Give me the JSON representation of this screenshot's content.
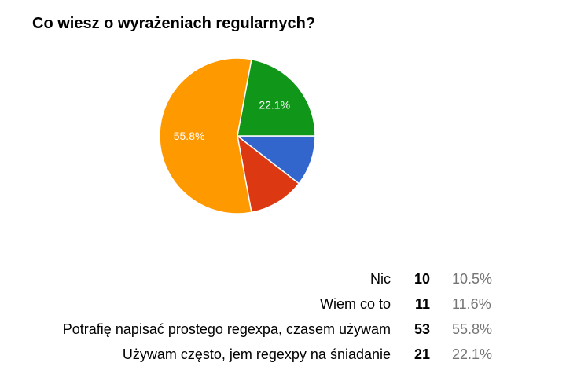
{
  "chart_data": {
    "type": "pie",
    "title": "Co wiesz o wyrażeniach regularnych?",
    "slices": [
      {
        "label": "Nic",
        "count": "10",
        "percent": "10.5%",
        "value": 10.5,
        "color": "#3366cc"
      },
      {
        "label": "Wiem co to",
        "count": "11",
        "percent": "11.6%",
        "value": 11.6,
        "color": "#dc3912"
      },
      {
        "label": "Potrafię napisać prostego regexpa, czasem używam",
        "count": "53",
        "percent": "55.8%",
        "value": 55.8,
        "color": "#ff9900"
      },
      {
        "label": "Używam często, jem regexpy na śniadanie",
        "count": "21",
        "percent": "22.1%",
        "value": 22.1,
        "color": "#109618"
      }
    ],
    "slice_labels_shown": [
      "Potrafię napisać prostego regexpa, czasem używam",
      "Używam często, jem regexpy na śniadanie"
    ],
    "start_angle": "3 o'clock",
    "direction": "clockwise",
    "legend": "bottom-right table"
  }
}
